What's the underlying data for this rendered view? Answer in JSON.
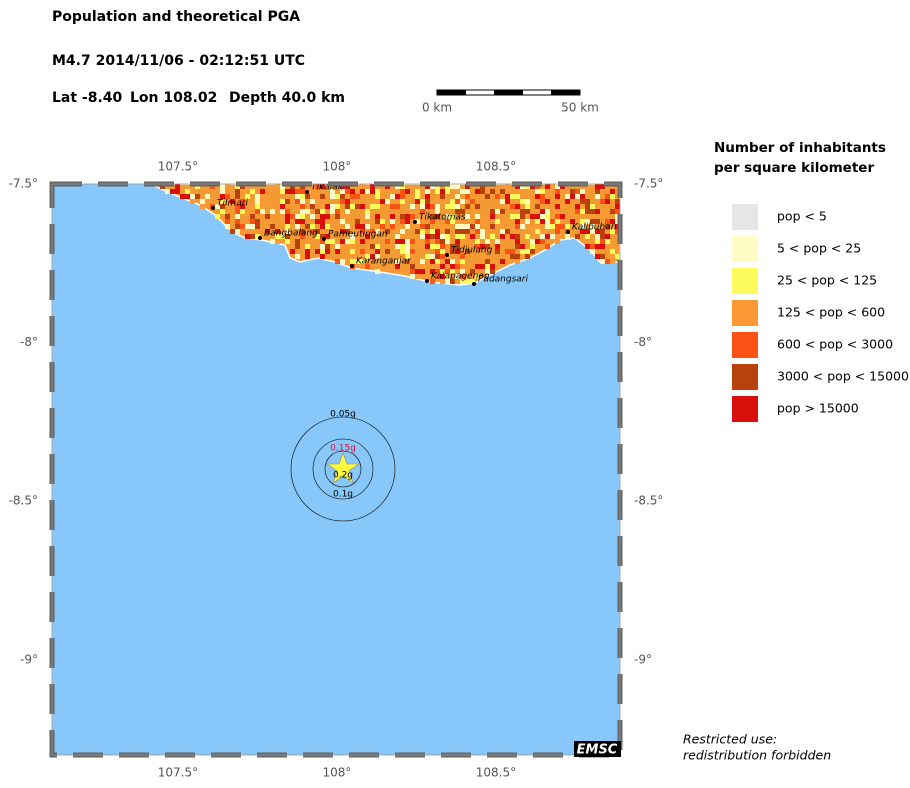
{
  "header": {
    "title": "Population and theoretical PGA",
    "event": "M4.7  2014/11/06 - 02:12:51 UTC",
    "lat": "Lat -8.40",
    "lon": "Lon 108.02",
    "depth": "Depth  40.0 km"
  },
  "scale_bar": [
    "0 km",
    "50 km"
  ],
  "map": {
    "xlim": [
      107.104,
      108.89
    ],
    "ylim": [
      -9.3,
      -7.5
    ],
    "xticks": [
      {
        "value": 107.5,
        "label": "107.5°"
      },
      {
        "value": 108,
        "label": "108°"
      },
      {
        "value": 108.5,
        "label": "108.5°"
      }
    ],
    "yticks": [
      {
        "value": -7.5,
        "label": "-7.5°"
      },
      {
        "value": -8,
        "label": "-8°"
      },
      {
        "value": -8.5,
        "label": "-8.5°"
      },
      {
        "value": -9,
        "label": "-9°"
      }
    ]
  },
  "cities": [
    "Tikalak",
    "Tilmari",
    "Bangbalang",
    "Pameutingan",
    "Tikatomas",
    "Tidjulang",
    "Karanganjar",
    "Kalapagenep",
    "Padangsari",
    "Kalibuhan"
  ],
  "pga_labels": [
    "0.05g",
    "0.15g",
    "0.2g",
    "0.1g"
  ],
  "legend": {
    "title": [
      "Number of inhabitants",
      "per square kilometer"
    ],
    "items": [
      {
        "label": "pop < 5",
        "color": "#e6e6e6"
      },
      {
        "label": "5 < pop < 25",
        "color": "#fffbc4"
      },
      {
        "label": "25 < pop < 125",
        "color": "#fdfb5e"
      },
      {
        "label": "125 < pop < 600",
        "color": "#fb9a34"
      },
      {
        "label": "600 < pop < 3000",
        "color": "#fb5216"
      },
      {
        "label": "3000 < pop < 15000",
        "color": "#b8410c"
      },
      {
        "label": "pop > 15000",
        "color": "#d80f0a"
      }
    ]
  },
  "badge": "EMSC",
  "notice": [
    "Restricted use:",
    "redistribution forbidden"
  ]
}
